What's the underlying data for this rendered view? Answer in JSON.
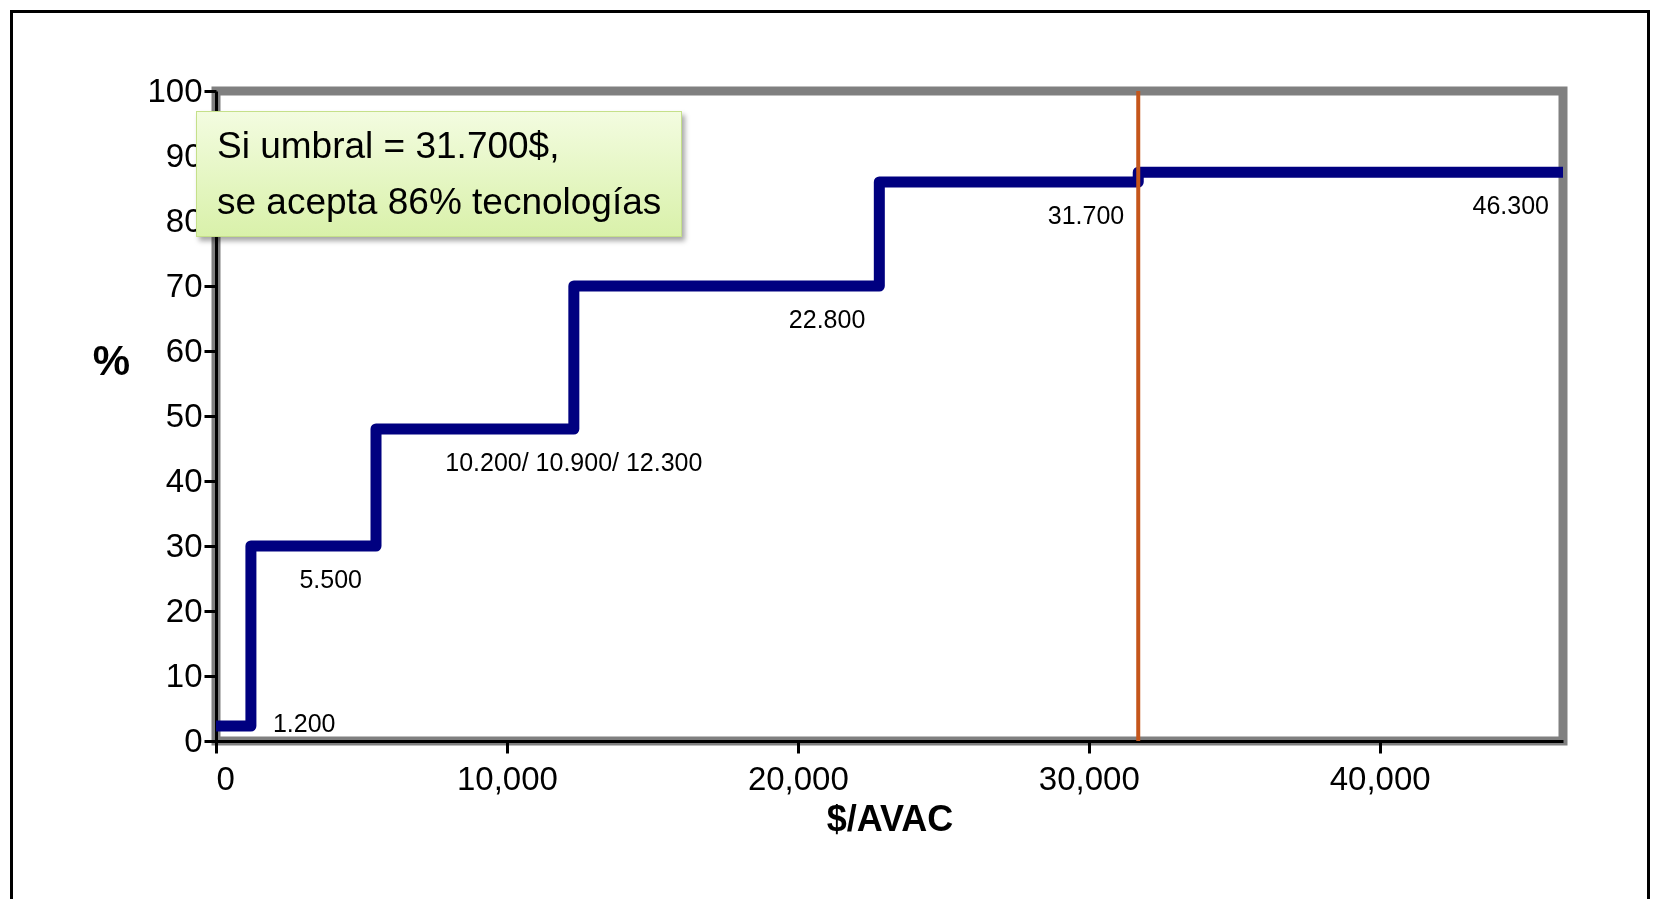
{
  "chart_data": {
    "type": "step",
    "xlabel": "$/AVAC",
    "ylabel": "%",
    "x": [
      0,
      1200,
      5500,
      12300,
      22800,
      31700,
      46300
    ],
    "series": [
      {
        "color": "#000080",
        "values": [
          2.3,
          30,
          48,
          70,
          86,
          87.5,
          87.5
        ]
      }
    ],
    "xlim": [
      0,
      46300
    ],
    "ylim": [
      0,
      100
    ],
    "xticks": [
      0,
      {
        "value": 10000,
        "label": "10,000"
      },
      {
        "value": 20000,
        "label": "20,000"
      },
      {
        "value": 30000,
        "label": "30,000"
      },
      {
        "value": 40000,
        "label": "40,000"
      }
    ],
    "yticks": [
      0,
      10,
      20,
      30,
      40,
      50,
      60,
      70,
      80,
      90,
      100
    ],
    "ref_lines": [
      {
        "axis": "x",
        "value": 31700,
        "color": "#c5561b"
      }
    ],
    "annotations": [
      "Si umbral = 31.700$,\nse acepta 86% tecnologías",
      {
        "text": "1.200",
        "x": 1200,
        "y": 2.3
      },
      {
        "text": "5.500",
        "x": 5500,
        "y": 30
      },
      {
        "text": "10.200/ 10.900/ 12.300",
        "x": 12300,
        "y": 48
      },
      {
        "text": "22.800",
        "x": 22800,
        "y": 70
      },
      {
        "text": "31.700",
        "x": 31700,
        "y": 86
      },
      {
        "text": "46.300",
        "x": 46300,
        "y": 87.5
      }
    ],
    "grid": false,
    "marker": "none",
    "line_style": "solid"
  }
}
